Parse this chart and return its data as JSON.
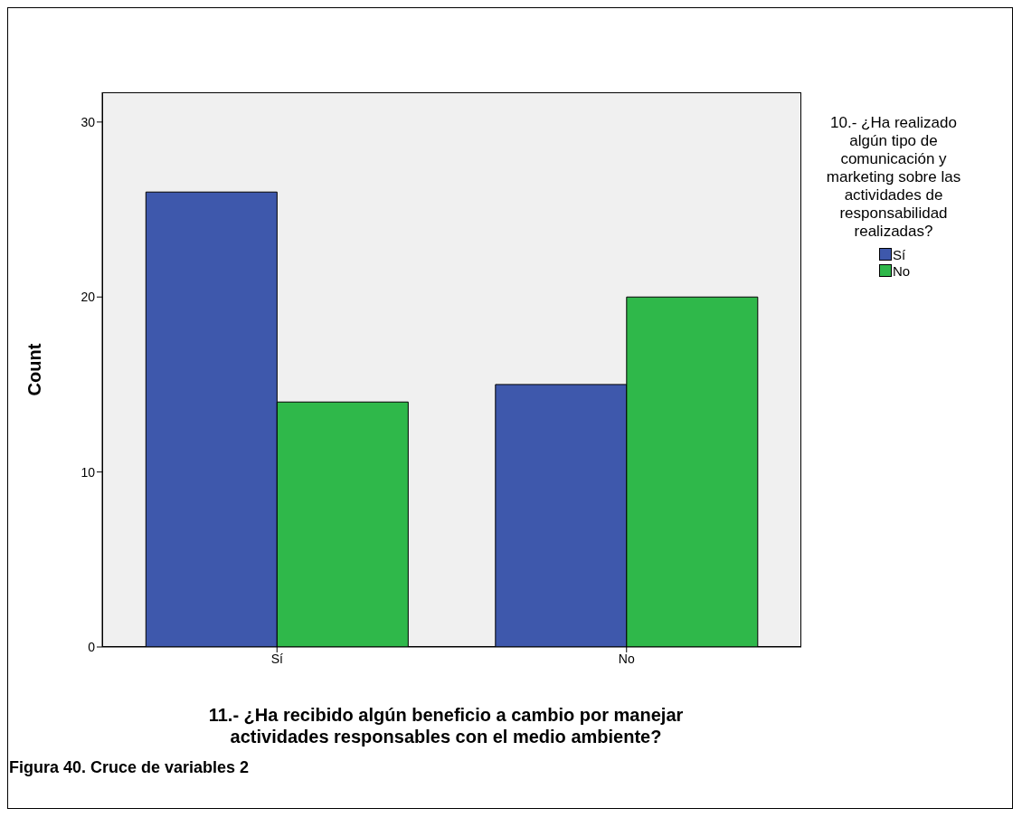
{
  "chart_data": {
    "type": "bar",
    "xlabel": "11.- ¿Ha recibido algún beneficio a cambio por manejar actividades responsables con el medio ambiente?",
    "ylabel": "Count",
    "legend_title": "10.- ¿Ha realizado algún tipo de comunicación y marketing sobre las actividades de responsabilidad realizadas?",
    "categories": [
      "Sí",
      "No"
    ],
    "series": [
      {
        "name": "Sí",
        "color": "#3e58ac",
        "values": [
          26,
          15
        ]
      },
      {
        "name": "No",
        "color": "#2fb84a",
        "values": [
          14,
          20
        ]
      }
    ],
    "ylim": [
      0,
      31.7
    ],
    "yticks": [
      0,
      10,
      20,
      30
    ],
    "legend": "top right",
    "annotations": [
      "Figura 40. Cruce de variables 2"
    ]
  }
}
